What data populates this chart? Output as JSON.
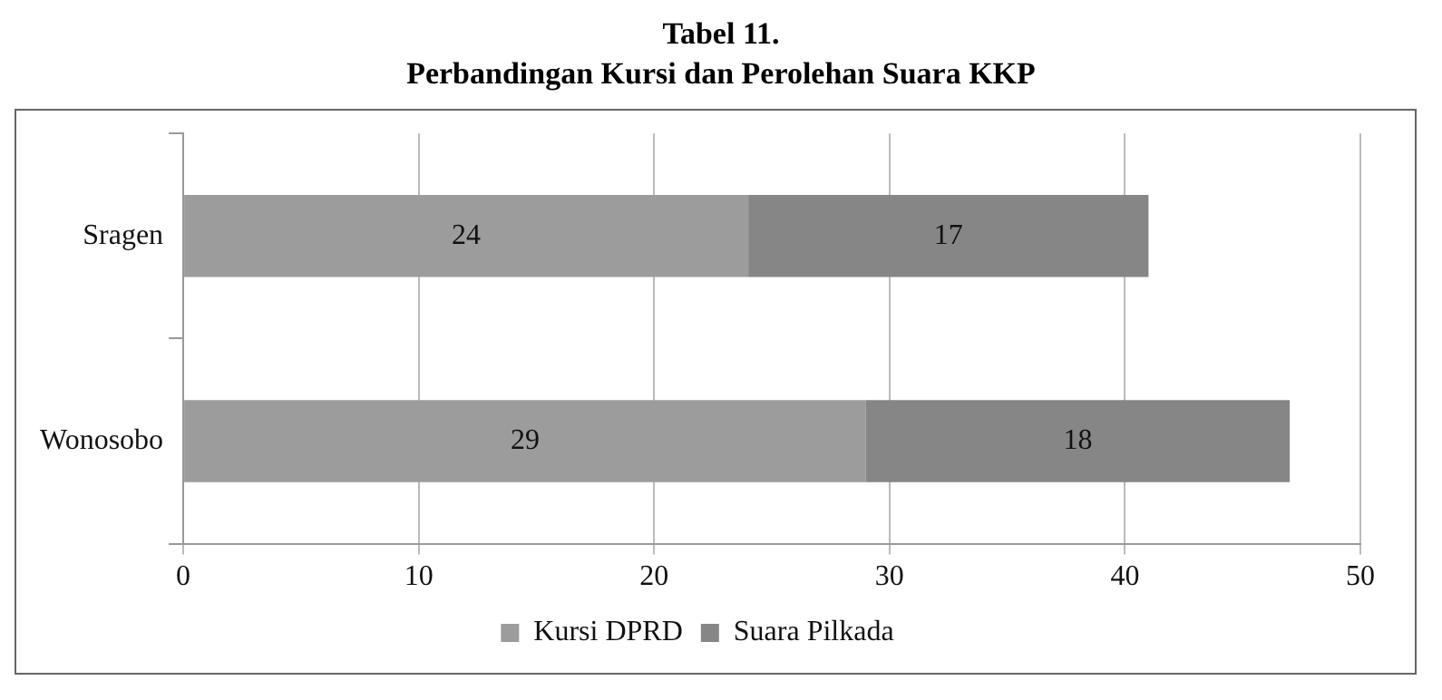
{
  "chart_data": {
    "type": "bar",
    "title": "Tabel 11.",
    "subtitle": "Perbandingan Kursi dan Perolehan Suara KKP",
    "orientation": "horizontal",
    "stacked": true,
    "categories": [
      "Sragen",
      "Wonosobo"
    ],
    "series": [
      {
        "name": "Kursi DPRD",
        "color": "#9c9c9c",
        "values": [
          24,
          29
        ]
      },
      {
        "name": "Suara Pilkada",
        "color": "#868686",
        "values": [
          17,
          18
        ]
      }
    ],
    "xlim": [
      0,
      50
    ],
    "xticks": [
      0,
      10,
      20,
      30,
      40,
      50
    ],
    "grid": "x",
    "legend": "bottom",
    "data_labels": true
  }
}
